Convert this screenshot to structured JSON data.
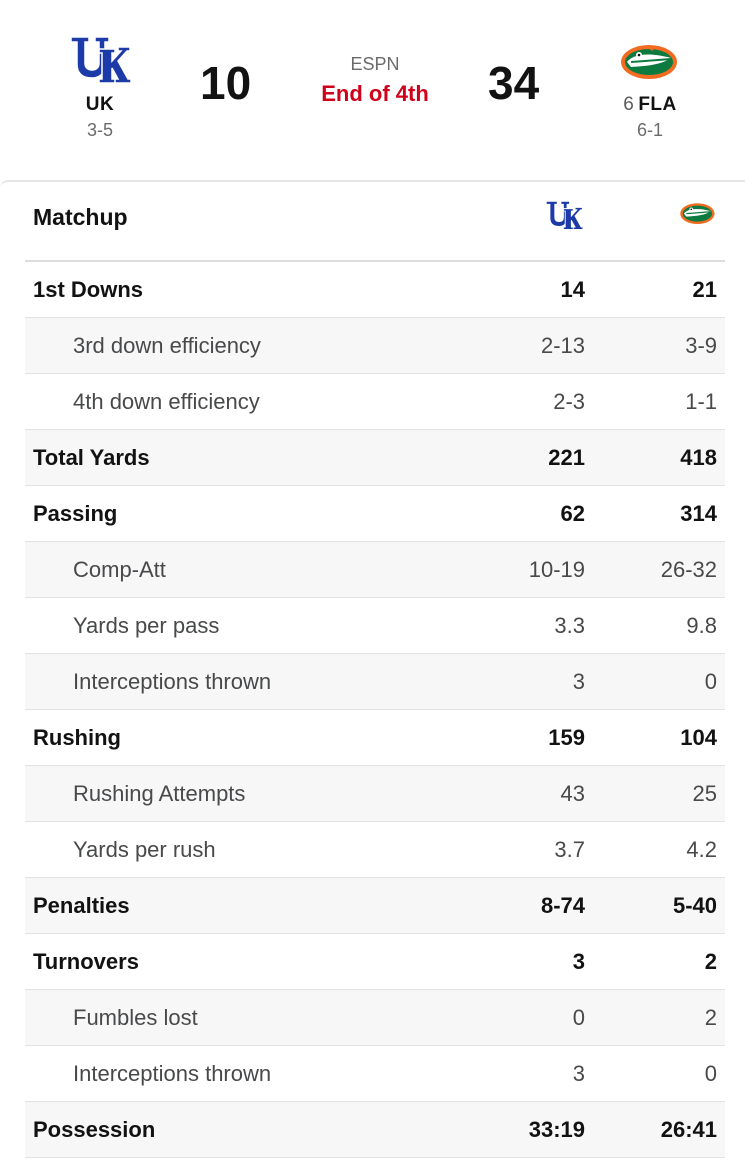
{
  "game": {
    "away": {
      "abbr": "UK",
      "rank": "",
      "record": "3-5",
      "score": "10",
      "logo_icon": "kentucky-wildcats-logo-icon",
      "color": "#1d3ba8"
    },
    "home": {
      "abbr": "FLA",
      "rank": "6",
      "record": "6-1",
      "score": "34",
      "logo_icon": "florida-gators-logo-icon",
      "color": "#0d7a3f"
    },
    "network": "ESPN",
    "status": "End of 4th",
    "status_color": "#d0021b"
  },
  "matchup": {
    "title": "Matchup",
    "rows": [
      {
        "label": "1st Downs",
        "away": "14",
        "home": "21",
        "type": "main"
      },
      {
        "label": "3rd down efficiency",
        "away": "2-13",
        "home": "3-9",
        "type": "sub"
      },
      {
        "label": "4th down efficiency",
        "away": "2-3",
        "home": "1-1",
        "type": "sub"
      },
      {
        "label": "Total Yards",
        "away": "221",
        "home": "418",
        "type": "main"
      },
      {
        "label": "Passing",
        "away": "62",
        "home": "314",
        "type": "main"
      },
      {
        "label": "Comp-Att",
        "away": "10-19",
        "home": "26-32",
        "type": "sub"
      },
      {
        "label": "Yards per pass",
        "away": "3.3",
        "home": "9.8",
        "type": "sub"
      },
      {
        "label": "Interceptions thrown",
        "away": "3",
        "home": "0",
        "type": "sub"
      },
      {
        "label": "Rushing",
        "away": "159",
        "home": "104",
        "type": "main"
      },
      {
        "label": "Rushing Attempts",
        "away": "43",
        "home": "25",
        "type": "sub"
      },
      {
        "label": "Yards per rush",
        "away": "3.7",
        "home": "4.2",
        "type": "sub"
      },
      {
        "label": "Penalties",
        "away": "8-74",
        "home": "5-40",
        "type": "main"
      },
      {
        "label": "Turnovers",
        "away": "3",
        "home": "2",
        "type": "main"
      },
      {
        "label": "Fumbles lost",
        "away": "0",
        "home": "2",
        "type": "sub"
      },
      {
        "label": "Interceptions thrown",
        "away": "3",
        "home": "0",
        "type": "sub"
      },
      {
        "label": "Possession",
        "away": "33:19",
        "home": "26:41",
        "type": "main"
      }
    ]
  }
}
